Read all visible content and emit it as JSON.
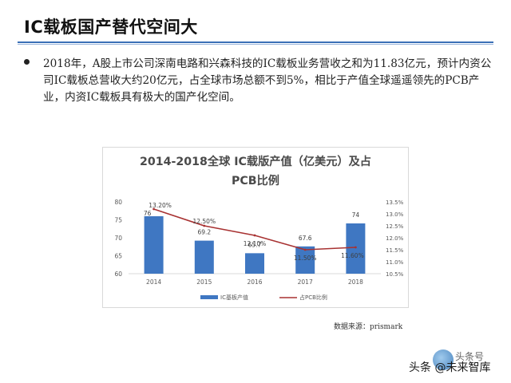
{
  "slide": {
    "title": "IC载板国产替代空间大",
    "bullet": "2018年，A股上市公司深南电路和兴森科技的IC载板业务营收之和为11.83亿元，预计内资公司IC载板总营收大约20亿元，占全球市场总额不到5%，相比于产值全球遥遥领先的PCB产业，内资IC载板具有极大的国产化空间。",
    "source": "数据来源：prismark",
    "watermark_top": "头条号",
    "watermark_main": "头条 @未来智库"
  },
  "colors": {
    "bar": "#3f77c2",
    "line": "#a83232",
    "rule": "#3b6fb6",
    "axis_text": "#595959",
    "grid": "#d9d9d9"
  },
  "chart_data": {
    "type": "bar",
    "title_line1": "2014-2018全球 IC载版产值（亿美元）及占",
    "title_line2": "PCB比例",
    "categories": [
      "2014",
      "2015",
      "2016",
      "2017",
      "2018"
    ],
    "series": [
      {
        "name": "IC基板产值",
        "type": "bar",
        "axis": "left",
        "values": [
          76,
          69.2,
          65.7,
          67.6,
          74
        ],
        "labels": [
          "76",
          "69.2",
          "65.7",
          "67.6",
          "74"
        ]
      },
      {
        "name": "占PCB比例",
        "type": "line",
        "axis": "right",
        "values": [
          13.2,
          12.5,
          12.1,
          11.5,
          11.6
        ],
        "labels": [
          "13.20%",
          "12.50%",
          "12.10%",
          "11.50%",
          "11.60%"
        ]
      }
    ],
    "y_left": {
      "min": 60,
      "max": 80,
      "ticks": [
        60,
        65,
        70,
        75,
        80
      ]
    },
    "y_right": {
      "min": 10.5,
      "max": 13.5,
      "ticks": [
        10.5,
        11.0,
        11.5,
        12.0,
        12.5,
        13.0,
        13.5
      ],
      "tick_labels": [
        "10.5%",
        "11.0%",
        "11.5%",
        "12.0%",
        "12.5%",
        "13.0%",
        "13.5%"
      ]
    },
    "grid": false,
    "legend": "bottom"
  }
}
